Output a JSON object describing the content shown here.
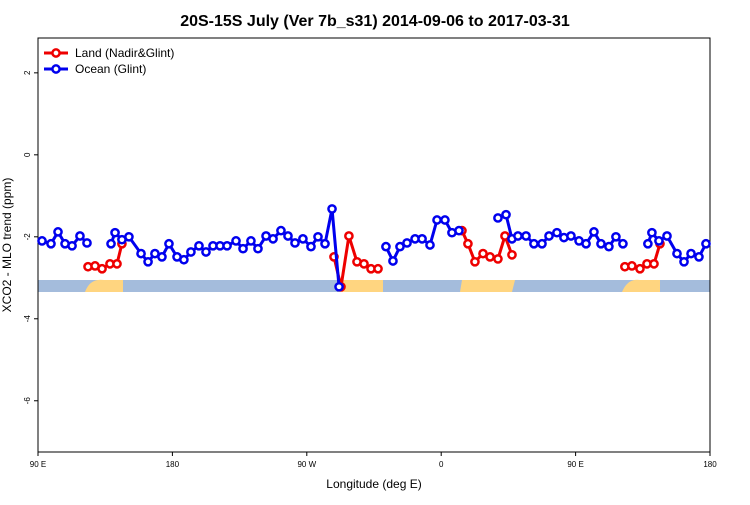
{
  "chart_data": {
    "type": "line",
    "title": "20S-15S July (Ver 7b_s31)   2014-09-06 to 2017-03-31",
    "x_label": "Longitude (deg E)",
    "y_label": "XCO2 - MLO trend (ppm)",
    "xlim": [
      90,
      540
    ],
    "ylim": [
      -7.25,
      2.85
    ],
    "xticks": [
      {
        "value": 90,
        "label": "90 E"
      },
      {
        "value": 180,
        "label": "180"
      },
      {
        "value": 270,
        "label": "90 W"
      },
      {
        "value": 360,
        "label": "0"
      },
      {
        "value": 450,
        "label": "90 E"
      },
      {
        "value": 540,
        "label": "180"
      }
    ],
    "yticks": [
      -6,
      -4,
      -2,
      0,
      2
    ],
    "legend": "top-left",
    "series": [
      {
        "name": "Land (Nadir&Glint)",
        "color": "#ee0000",
        "x": [
          123.5,
          128.2,
          132.9,
          138.2,
          142.9,
          146.2,
          217,
          288.2,
          292.9,
          298.2,
          303.6,
          308.3,
          313.0,
          317.7,
          345,
          373.9,
          377.9,
          382.6,
          388.0,
          392.7,
          398.0,
          402.7,
          407.4,
          445,
          483.0,
          487.7,
          493.1,
          497.8,
          502.5,
          506.5
        ],
        "values": [
          -2.73,
          -2.71,
          -2.78,
          -2.66,
          -2.66,
          -2.17,
          null,
          -2.49,
          -3.22,
          -1.98,
          -2.61,
          -2.66,
          -2.78,
          -2.78,
          null,
          -1.85,
          -2.17,
          -2.61,
          -2.41,
          -2.49,
          -2.54,
          -1.98,
          -2.44,
          null,
          -2.73,
          -2.71,
          -2.78,
          -2.66,
          -2.66,
          -2.17
        ]
      },
      {
        "name": "Ocean (Glint)",
        "color": "#0000ee",
        "x": [
          92.7,
          98.7,
          103.4,
          108.1,
          112.8,
          118.1,
          122.8,
          131,
          138.9,
          141.6,
          146.2,
          150.9,
          159.0,
          163.7,
          168.3,
          173.0,
          177.7,
          183.1,
          187.7,
          192.4,
          197.8,
          202.5,
          207.2,
          211.9,
          216.6,
          222.6,
          227.3,
          232.6,
          237.3,
          242.7,
          247.4,
          252.7,
          257.4,
          262.1,
          267.4,
          272.8,
          277.5,
          282.2,
          286.9,
          291.6,
          307,
          323.0,
          327.7,
          332.4,
          337.1,
          342.5,
          347.2,
          352.5,
          357.2,
          362.5,
          367.2,
          371.9,
          385,
          398.0,
          403.4,
          407.4,
          411.4,
          416.8,
          422.1,
          427.5,
          432.2,
          437.5,
          442.2,
          446.9,
          452.3,
          457.0,
          462.3,
          467.0,
          472.3,
          477.0,
          481.7,
          490,
          498.4,
          501.1,
          505.8,
          511.2,
          517.9,
          522.6,
          527.3,
          532.6,
          537.3
        ],
        "values": [
          -2.1,
          -2.17,
          -1.88,
          -2.17,
          -2.22,
          -1.98,
          -2.15,
          null,
          -2.17,
          -1.9,
          -2.07,
          -2.0,
          -2.41,
          -2.61,
          -2.41,
          -2.49,
          -2.17,
          -2.49,
          -2.56,
          -2.37,
          -2.22,
          -2.37,
          -2.22,
          -2.22,
          -2.22,
          -2.1,
          -2.29,
          -2.1,
          -2.29,
          -1.98,
          -2.05,
          -1.85,
          -1.98,
          -2.15,
          -2.05,
          -2.24,
          -2.0,
          -2.17,
          -1.32,
          -3.22,
          null,
          -2.24,
          -2.59,
          -2.24,
          -2.15,
          -2.05,
          -2.05,
          -2.2,
          -1.59,
          -1.59,
          -1.9,
          -1.85,
          null,
          -1.54,
          -1.46,
          -2.05,
          -1.98,
          -1.98,
          -2.17,
          -2.17,
          -1.98,
          -1.9,
          -2.02,
          -1.98,
          -2.1,
          -2.17,
          -1.88,
          -2.17,
          -2.24,
          -2.0,
          -2.17,
          null,
          -2.17,
          -1.9,
          -2.1,
          -1.98,
          -2.41,
          -2.61,
          -2.41,
          -2.49,
          -2.17
        ]
      }
    ]
  }
}
